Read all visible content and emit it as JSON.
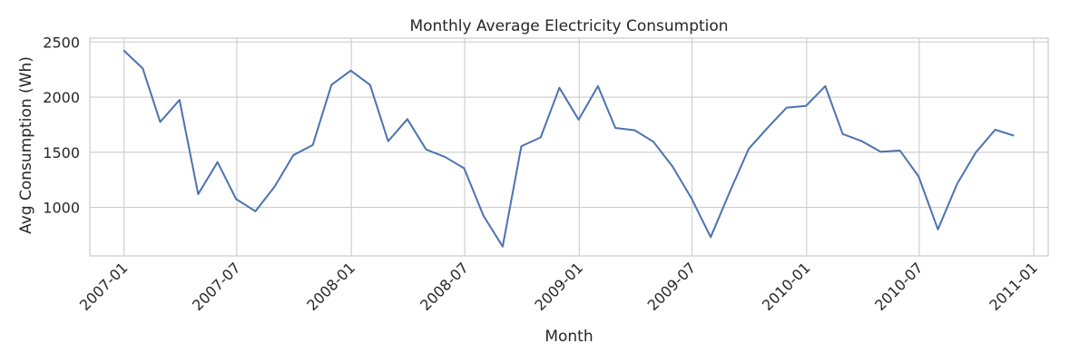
{
  "chart_data": {
    "type": "line",
    "title": "Monthly Average Electricity Consumption",
    "xlabel": "Month",
    "ylabel": "Avg Consumption (Wh)",
    "x_ticks": [
      "2007-01",
      "2007-07",
      "2008-01",
      "2008-07",
      "2009-01",
      "2009-07",
      "2010-01",
      "2010-07",
      "2011-01"
    ],
    "y_ticks": [
      1000,
      1500,
      2000,
      2500
    ],
    "xlim": [
      "2006-11-07",
      "2011-01-24"
    ],
    "ylim": [
      560,
      2535
    ],
    "grid": true,
    "legend": "none",
    "line_color": "#4c72b0",
    "series": [
      {
        "x": [
          "2006-12-31",
          "2007-01-31",
          "2007-02-28",
          "2007-03-31",
          "2007-04-30",
          "2007-05-31",
          "2007-06-30",
          "2007-07-31",
          "2007-08-31",
          "2007-09-30",
          "2007-10-31",
          "2007-11-30",
          "2007-12-31",
          "2008-01-31",
          "2008-02-29",
          "2008-03-31",
          "2008-04-30",
          "2008-05-31",
          "2008-06-30",
          "2008-07-31",
          "2008-08-31",
          "2008-09-30",
          "2008-10-31",
          "2008-11-30",
          "2008-12-31",
          "2009-01-31",
          "2009-02-28",
          "2009-03-31",
          "2009-04-30",
          "2009-05-31",
          "2009-06-30",
          "2009-07-31",
          "2009-08-31",
          "2009-09-30",
          "2009-10-31",
          "2009-11-30",
          "2009-12-31",
          "2010-01-31",
          "2010-02-28",
          "2010-03-31",
          "2010-04-30",
          "2010-05-31",
          "2010-06-30",
          "2010-07-31",
          "2010-08-31",
          "2010-09-30",
          "2010-10-31",
          "2010-11-30"
        ],
        "y": [
          2425,
          2260,
          1775,
          1975,
          1120,
          1410,
          1075,
          965,
          1190,
          1475,
          1565,
          2110,
          2240,
          2110,
          1600,
          1800,
          1525,
          1455,
          1355,
          925,
          645,
          1555,
          1635,
          2085,
          1795,
          2100,
          1720,
          1700,
          1595,
          1370,
          1085,
          730,
          1145,
          1530,
          1725,
          1905,
          1920,
          2100,
          1665,
          1600,
          1505,
          1515,
          1280,
          800,
          1215,
          1500,
          1705,
          1650
        ]
      }
    ]
  }
}
